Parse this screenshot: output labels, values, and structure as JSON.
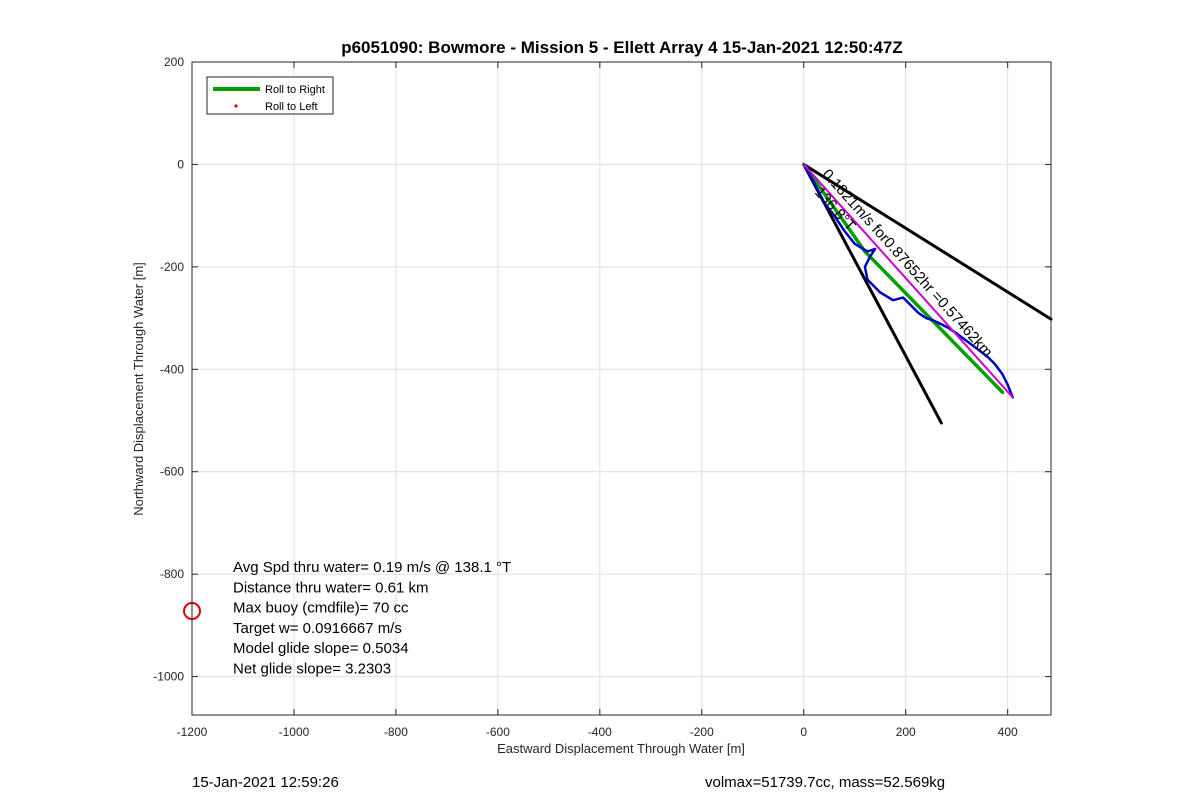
{
  "chart_data": {
    "type": "line",
    "title": "p6051090: Bowmore - Mission 5 - Ellett Array 4 15-Jan-2021 12:50:47Z",
    "xlabel": "Eastward Displacement Through Water [m]",
    "ylabel": "Northward Displacement Through Water [m]",
    "xlim": [
      -1200,
      485
    ],
    "ylim": [
      -1075,
      200
    ],
    "xticks": [
      -1200,
      -1000,
      -800,
      -600,
      -400,
      -200,
      0,
      200,
      400
    ],
    "yticks": [
      200,
      0,
      -200,
      -400,
      -600,
      -800,
      -1000
    ],
    "grid": true,
    "legend": {
      "position": "top-left",
      "entries": [
        {
          "label": "Roll to Right",
          "color": "#00a000",
          "style": "line"
        },
        {
          "label": "Roll to Left",
          "color": "#e00000",
          "style": "dot"
        }
      ]
    },
    "cone_lines": [
      {
        "x": [
          0,
          485
        ],
        "y": [
          0,
          -302
        ],
        "color": "#000000"
      },
      {
        "x": [
          0,
          270
        ],
        "y": [
          0,
          -505
        ],
        "color": "#000000"
      }
    ],
    "green_track": {
      "x": [
        0,
        120,
        390
      ],
      "y": [
        0,
        -170,
        -445
      ],
      "color": "#00a000"
    },
    "blue_track": {
      "x": [
        0,
        20,
        40,
        60,
        80,
        100,
        125,
        140,
        130,
        120,
        125,
        150,
        175,
        195,
        210,
        225,
        240,
        255,
        270,
        285,
        300,
        320,
        340,
        360,
        375,
        390,
        400,
        410
      ],
      "y": [
        0,
        -35,
        -75,
        -100,
        -130,
        -155,
        -170,
        -165,
        -180,
        -200,
        -225,
        -250,
        -265,
        -260,
        -275,
        -290,
        -300,
        -305,
        -312,
        -320,
        -330,
        -345,
        -360,
        -375,
        -390,
        -410,
        -430,
        -455
      ],
      "color": "#0000c8"
    },
    "magenta_track": {
      "x": [
        0,
        410
      ],
      "y": [
        0,
        -455
      ],
      "color": "#d000d0"
    },
    "current_label": {
      "text": "0.1821m/s for0.87652hr =0.57462km",
      "x": 35,
      "y": -20
    },
    "heading_label": {
      "text": "136.8°T",
      "x": 20,
      "y": -55
    },
    "marker": {
      "x": -1200,
      "y": -872,
      "color": "#dd0000"
    },
    "stats": [
      "Avg Spd thru water=  0.19 m/s @ 138.1 °T",
      "Distance thru water=  0.61 km",
      "Max buoy (cmdfile)= 70 cc",
      "Target w= 0.0916667 m/s",
      "Model glide slope= 0.5034",
      "Net glide slope= 3.2303"
    ]
  },
  "footer": {
    "timestamp": "15-Jan-2021 12:59:26",
    "params": "volmax=51739.7cc, mass=52.569kg"
  }
}
